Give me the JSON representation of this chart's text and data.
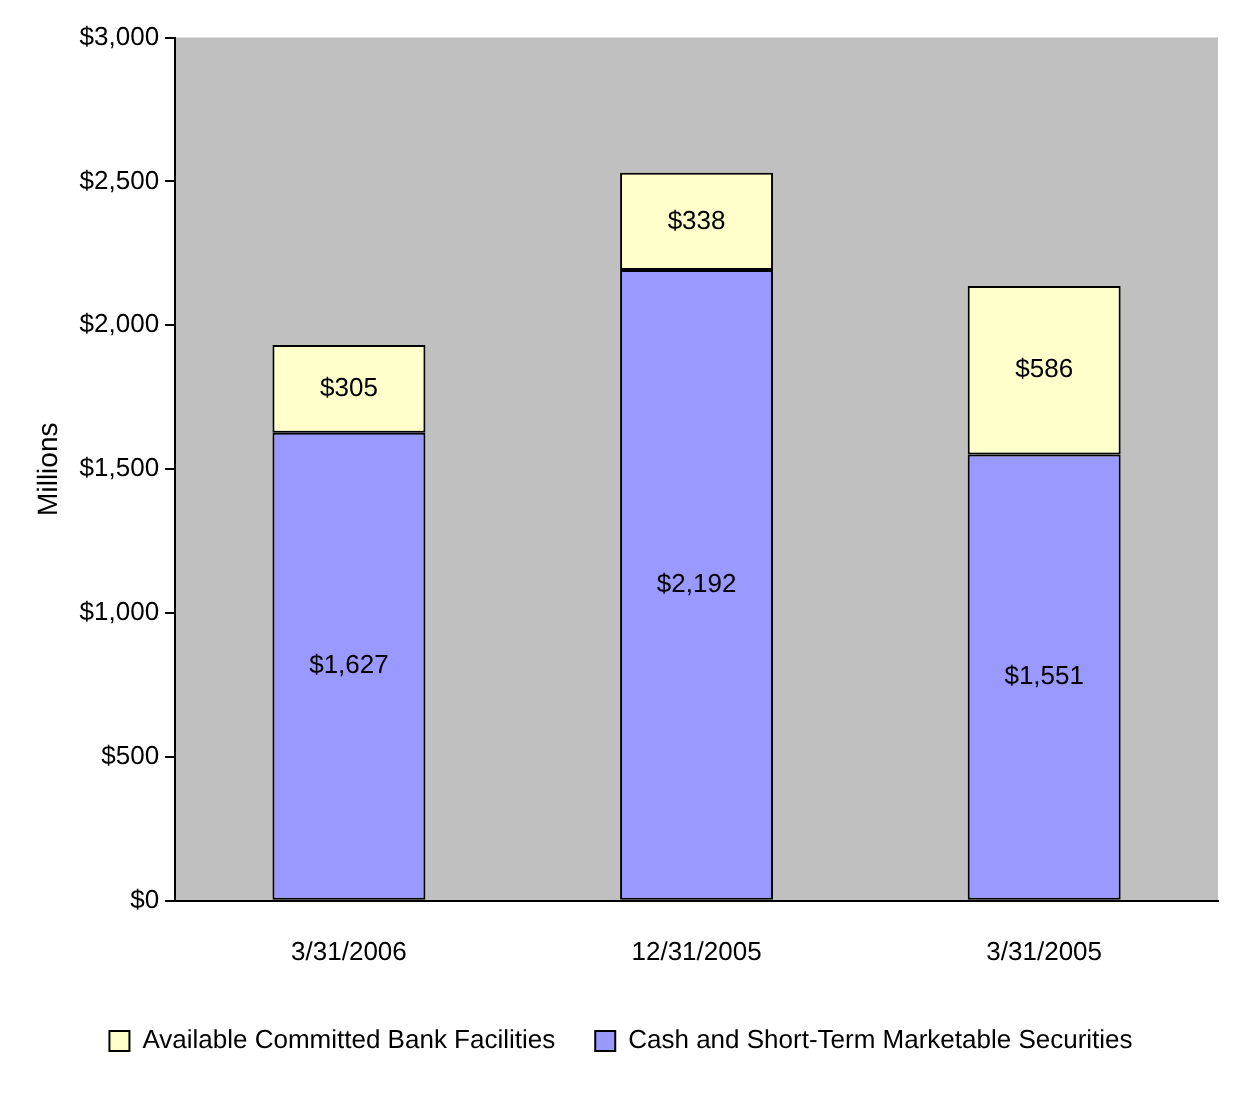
{
  "chart_data": {
    "type": "bar",
    "stacked": true,
    "ylabel": "Millions",
    "categories": [
      "3/31/2006",
      "12/31/2005",
      "3/31/2005"
    ],
    "series": [
      {
        "name": "Cash and Short-Term Marketable Securities",
        "color": "#9999ff",
        "values": [
          1627,
          2192,
          1551
        ],
        "value_labels": [
          "$1,627",
          "$2,192",
          "$1,551"
        ]
      },
      {
        "name": "Available Committed Bank Facilities",
        "color": "#ffffcc",
        "values": [
          305,
          338,
          586
        ],
        "value_labels": [
          "$305",
          "$338",
          "$586"
        ]
      }
    ],
    "ylim": [
      0,
      3000
    ],
    "yticks": [
      {
        "value": 0,
        "label": "$0"
      },
      {
        "value": 500,
        "label": "$500"
      },
      {
        "value": 1000,
        "label": "$1,000"
      },
      {
        "value": 1500,
        "label": "$1,500"
      },
      {
        "value": 2000,
        "label": "$2,000"
      },
      {
        "value": 2500,
        "label": "$2,500"
      },
      {
        "value": 3000,
        "label": "$3,000"
      }
    ],
    "grid": false,
    "legend": "bottom"
  }
}
